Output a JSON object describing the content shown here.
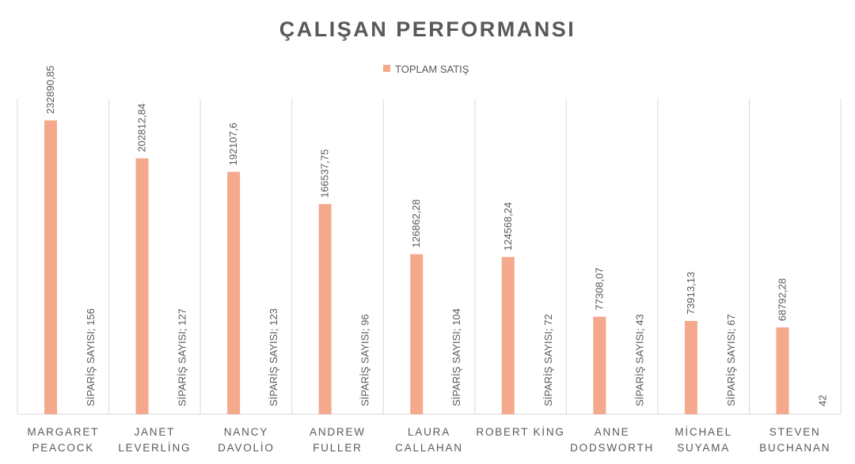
{
  "chart_data": {
    "type": "bar",
    "title": "ÇALIŞAN PERFORMANSI",
    "legend": {
      "position": "top",
      "entries": [
        "TOPLAM SATIŞ"
      ]
    },
    "categories": [
      [
        "MARGARET",
        "PEACOCK"
      ],
      [
        "JANET",
        "LEVERLİNG"
      ],
      [
        "NANCY",
        "DAVOLİO"
      ],
      [
        "ANDREW",
        "FULLER"
      ],
      [
        "LAURA",
        "CALLAHAN"
      ],
      [
        "ROBERT KİNG"
      ],
      [
        "ANNE",
        "DODSWORTH"
      ],
      [
        "MİCHAEL",
        "SUYAMA"
      ],
      [
        "STEVEN",
        "BUCHANAN"
      ]
    ],
    "series": [
      {
        "name": "TOPLAM SATIŞ",
        "color": "#f4a98c",
        "values": [
          232890.85,
          202812.84,
          192107.6,
          166537.75,
          126862.28,
          124568.24,
          77308.07,
          73913.13,
          68792.28
        ],
        "labels": [
          "232890,85",
          "202812,84",
          "192107,6",
          "166537,75",
          "126862,28",
          "124568,24",
          "77308,07",
          "73913,13",
          "68792,28"
        ]
      },
      {
        "values": [
          156,
          127,
          123,
          96,
          104,
          72,
          43,
          67,
          42
        ],
        "labels": [
          "SİPARİŞ SAYISI; 156",
          "SİPARİŞ SAYISI; 127",
          "SİPARİŞ SAYISI; 123",
          "SİPARİŞ SAYISI; 96",
          "SİPARİŞ SAYISI; 104",
          "SİPARİŞ SAYISI; 72",
          "SİPARİŞ SAYISI; 43",
          "SİPARİŞ SAYISI; 67",
          "42"
        ]
      }
    ],
    "ylim": [
      0,
      250000
    ],
    "grid": {
      "vertical": true,
      "horizontal": false
    },
    "colors": {
      "title": "#595959",
      "text": "#595959",
      "grid": "#d9d9d9"
    }
  }
}
